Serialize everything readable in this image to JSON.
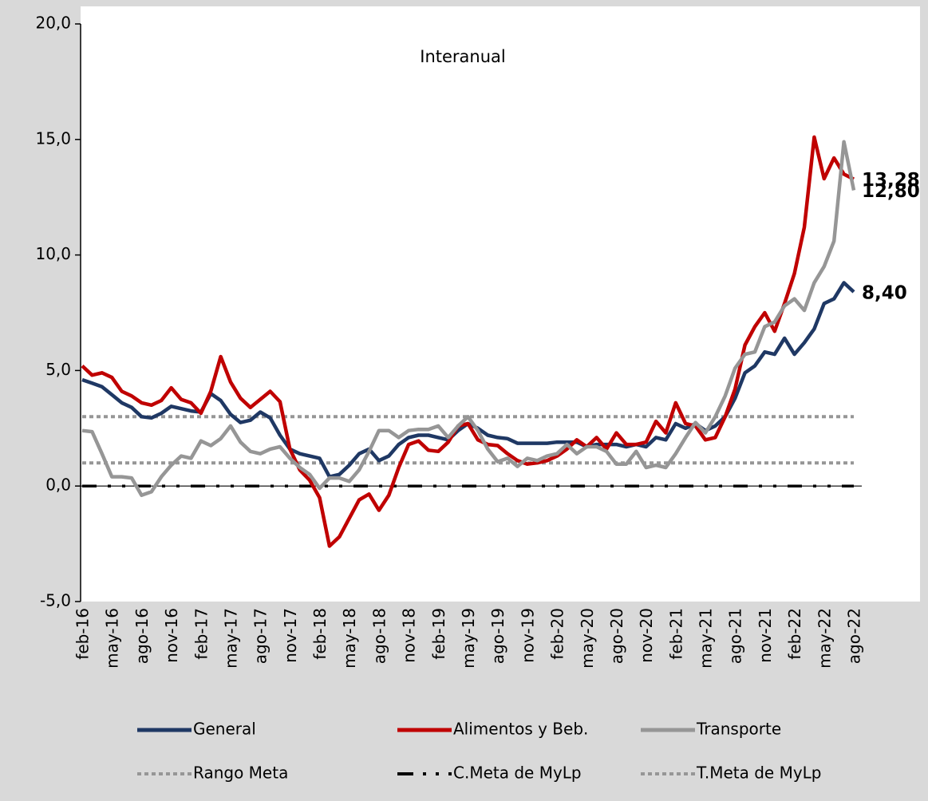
{
  "chart_data": {
    "type": "line",
    "title": "Interanual",
    "categories": [
      "feb-16",
      null,
      null,
      "may-16",
      null,
      null,
      "ago-16",
      null,
      null,
      "nov-16",
      null,
      null,
      "feb-17",
      null,
      null,
      "may-17",
      null,
      null,
      "ago-17",
      null,
      null,
      "nov-17",
      null,
      null,
      "feb-18",
      null,
      null,
      "may-18",
      null,
      null,
      "ago-18",
      null,
      null,
      "nov-18",
      null,
      null,
      "feb-19",
      null,
      null,
      "may-19",
      null,
      null,
      "ago-19",
      null,
      null,
      "nov-19",
      null,
      null,
      "feb-20",
      null,
      null,
      "may-20",
      null,
      null,
      "ago-20",
      null,
      null,
      "nov-20",
      null,
      null,
      "feb-21",
      null,
      null,
      "may-21",
      null,
      null,
      "ago-21",
      null,
      null,
      "nov-21",
      null,
      null,
      "feb-22",
      null,
      null,
      "may-22",
      null,
      null,
      "ago-22"
    ],
    "ylim": [
      -5,
      20
    ],
    "yticks": [
      {
        "value": -5,
        "label": "-5,0"
      },
      {
        "value": 0,
        "label": "0,0"
      },
      {
        "value": 5,
        "label": "5,0"
      },
      {
        "value": 10,
        "label": "10,0"
      },
      {
        "value": 15,
        "label": "15,0"
      },
      {
        "value": 20,
        "label": "20,0"
      }
    ],
    "series": [
      {
        "name": "General",
        "color": "#1f3864",
        "style": "solid",
        "values": [
          4.6,
          4.45,
          4.3,
          3.95,
          3.6,
          3.4,
          3.0,
          2.95,
          3.15,
          3.45,
          3.35,
          3.25,
          3.2,
          4.0,
          3.7,
          3.1,
          2.75,
          2.85,
          3.2,
          2.95,
          2.2,
          1.6,
          1.4,
          1.3,
          1.2,
          0.4,
          0.5,
          0.9,
          1.4,
          1.6,
          1.1,
          1.3,
          1.8,
          2.1,
          2.2,
          2.2,
          2.1,
          2.0,
          2.4,
          2.7,
          2.5,
          2.2,
          2.1,
          2.05,
          1.85,
          1.85,
          1.85,
          1.85,
          1.9,
          1.9,
          1.9,
          1.7,
          1.8,
          1.8,
          1.8,
          1.7,
          1.8,
          1.7,
          2.1,
          2.0,
          2.7,
          2.5,
          2.7,
          2.4,
          2.6,
          3.0,
          3.8,
          4.9,
          5.2,
          5.8,
          5.7,
          6.4,
          5.7,
          6.2,
          6.8,
          7.9,
          8.1,
          8.8,
          8.4
        ],
        "value_labels": [
          null,
          null,
          null,
          null,
          null,
          null,
          null,
          null,
          null,
          null,
          null,
          null,
          null,
          null,
          null,
          null,
          null,
          null,
          null,
          null,
          null,
          null,
          null,
          null,
          null,
          null,
          null,
          null,
          null,
          null,
          null,
          null,
          null,
          null,
          null,
          null,
          null,
          null,
          null,
          null,
          null,
          null,
          null,
          null,
          null,
          null,
          null,
          null,
          null,
          null,
          null,
          null,
          null,
          null,
          null,
          null,
          null,
          null,
          null,
          null,
          null,
          null,
          null,
          null,
          null,
          null,
          null,
          null,
          null,
          null,
          null,
          null,
          null,
          null,
          null,
          null,
          null,
          null,
          "8,40"
        ]
      },
      {
        "name": "Alimentos y Beb.",
        "color": "#c00000",
        "style": "solid",
        "values": [
          5.2,
          4.8,
          4.9,
          4.7,
          4.1,
          3.9,
          3.6,
          3.5,
          3.7,
          4.25,
          3.75,
          3.6,
          3.15,
          4.1,
          5.6,
          4.5,
          3.8,
          3.4,
          3.75,
          4.1,
          3.65,
          1.6,
          0.7,
          0.25,
          -0.5,
          -2.6,
          -2.2,
          -1.4,
          -0.6,
          -0.35,
          -1.05,
          -0.4,
          0.8,
          1.8,
          1.95,
          1.55,
          1.5,
          1.9,
          2.6,
          2.7,
          2.0,
          1.8,
          1.75,
          1.4,
          1.1,
          0.95,
          1.0,
          1.1,
          1.3,
          1.6,
          2.0,
          1.7,
          2.1,
          1.6,
          2.3,
          1.8,
          1.8,
          1.9,
          2.8,
          2.3,
          3.6,
          2.7,
          2.6,
          2.0,
          2.1,
          3.0,
          4.2,
          6.1,
          6.9,
          7.5,
          6.7,
          7.9,
          9.2,
          11.2,
          15.1,
          13.3,
          14.2,
          13.5,
          13.28
        ],
        "value_labels": [
          null,
          null,
          null,
          null,
          null,
          null,
          null,
          null,
          null,
          null,
          null,
          null,
          null,
          null,
          null,
          null,
          null,
          null,
          null,
          null,
          null,
          null,
          null,
          null,
          null,
          null,
          null,
          null,
          null,
          null,
          null,
          null,
          null,
          null,
          null,
          null,
          null,
          null,
          null,
          null,
          null,
          null,
          null,
          null,
          null,
          null,
          null,
          null,
          null,
          null,
          null,
          null,
          null,
          null,
          null,
          null,
          null,
          null,
          null,
          null,
          null,
          null,
          null,
          null,
          null,
          null,
          null,
          null,
          null,
          null,
          null,
          null,
          null,
          null,
          null,
          null,
          null,
          null,
          "13,28"
        ]
      },
      {
        "name": "Transporte",
        "color": "#969696",
        "style": "solid",
        "values": [
          2.4,
          2.35,
          1.4,
          0.4,
          0.4,
          0.35,
          -0.4,
          -0.25,
          0.4,
          0.9,
          1.3,
          1.2,
          1.95,
          1.75,
          2.05,
          2.6,
          1.9,
          1.5,
          1.4,
          1.6,
          1.7,
          1.2,
          0.8,
          0.5,
          -0.1,
          0.35,
          0.35,
          0.2,
          0.7,
          1.5,
          2.4,
          2.4,
          2.1,
          2.4,
          2.45,
          2.45,
          2.6,
          2.1,
          2.6,
          3.0,
          2.4,
          1.6,
          1.05,
          1.2,
          0.85,
          1.2,
          1.1,
          1.3,
          1.4,
          1.8,
          1.4,
          1.7,
          1.7,
          1.5,
          0.95,
          0.95,
          1.5,
          0.8,
          0.9,
          0.8,
          1.4,
          2.1,
          2.75,
          2.3,
          3.0,
          3.9,
          5.1,
          5.7,
          5.8,
          6.9,
          7.1,
          7.8,
          8.1,
          7.6,
          8.8,
          9.5,
          10.6,
          14.9,
          12.8
        ],
        "value_labels": [
          null,
          null,
          null,
          null,
          null,
          null,
          null,
          null,
          null,
          null,
          null,
          null,
          null,
          null,
          null,
          null,
          null,
          null,
          null,
          null,
          null,
          null,
          null,
          null,
          null,
          null,
          null,
          null,
          null,
          null,
          null,
          null,
          null,
          null,
          null,
          null,
          null,
          null,
          null,
          null,
          null,
          null,
          null,
          null,
          null,
          null,
          null,
          null,
          null,
          null,
          null,
          null,
          null,
          null,
          null,
          null,
          null,
          null,
          null,
          null,
          null,
          null,
          null,
          null,
          null,
          null,
          null,
          null,
          null,
          null,
          null,
          null,
          null,
          null,
          null,
          null,
          null,
          null,
          "12,80"
        ]
      },
      {
        "name": "Rango Meta",
        "color": "#969696",
        "style": "dotted",
        "values": [
          3,
          3,
          3,
          3,
          3,
          3,
          3,
          3,
          3,
          3,
          3,
          3,
          3,
          3,
          3,
          3,
          3,
          3,
          3,
          3,
          3,
          3,
          3,
          3,
          3,
          3,
          3,
          3,
          3,
          3,
          3,
          3,
          3,
          3,
          3,
          3,
          3,
          3,
          3,
          3,
          3,
          3,
          3,
          3,
          3,
          3,
          3,
          3,
          3,
          3,
          3,
          3,
          3,
          3,
          3,
          3,
          3,
          3,
          3,
          3,
          3,
          3,
          3,
          3,
          3,
          3,
          3,
          3,
          3,
          3,
          3,
          3,
          3,
          3,
          3,
          3,
          3,
          3,
          3
        ]
      },
      {
        "name": "C.Meta de MyLp",
        "color": "#000000",
        "style": "dashdot",
        "values": [
          0,
          0,
          0,
          0,
          0,
          0,
          0,
          0,
          0,
          0,
          0,
          0,
          0,
          0,
          0,
          0,
          0,
          0,
          0,
          0,
          0,
          0,
          0,
          0,
          0,
          0,
          0,
          0,
          0,
          0,
          0,
          0,
          0,
          0,
          0,
          0,
          0,
          0,
          0,
          0,
          0,
          0,
          0,
          0,
          0,
          0,
          0,
          0,
          0,
          0,
          0,
          0,
          0,
          0,
          0,
          0,
          0,
          0,
          0,
          0,
          0,
          0,
          0,
          0,
          0,
          0,
          0,
          0,
          0,
          0,
          0,
          0,
          0,
          0,
          0,
          0,
          0,
          0,
          0
        ]
      },
      {
        "name": "T.Meta de MyLp",
        "color": "#969696",
        "style": "dotted",
        "values": [
          1,
          1,
          1,
          1,
          1,
          1,
          1,
          1,
          1,
          1,
          1,
          1,
          1,
          1,
          1,
          1,
          1,
          1,
          1,
          1,
          1,
          1,
          1,
          1,
          1,
          1,
          1,
          1,
          1,
          1,
          1,
          1,
          1,
          1,
          1,
          1,
          1,
          1,
          1,
          1,
          1,
          1,
          1,
          1,
          1,
          1,
          1,
          1,
          1,
          1,
          1,
          1,
          1,
          1,
          1,
          1,
          1,
          1,
          1,
          1,
          1,
          1,
          1,
          1,
          1,
          1,
          1,
          1,
          1,
          1,
          1,
          1,
          1,
          1,
          1,
          1,
          1,
          1,
          1
        ]
      }
    ]
  }
}
